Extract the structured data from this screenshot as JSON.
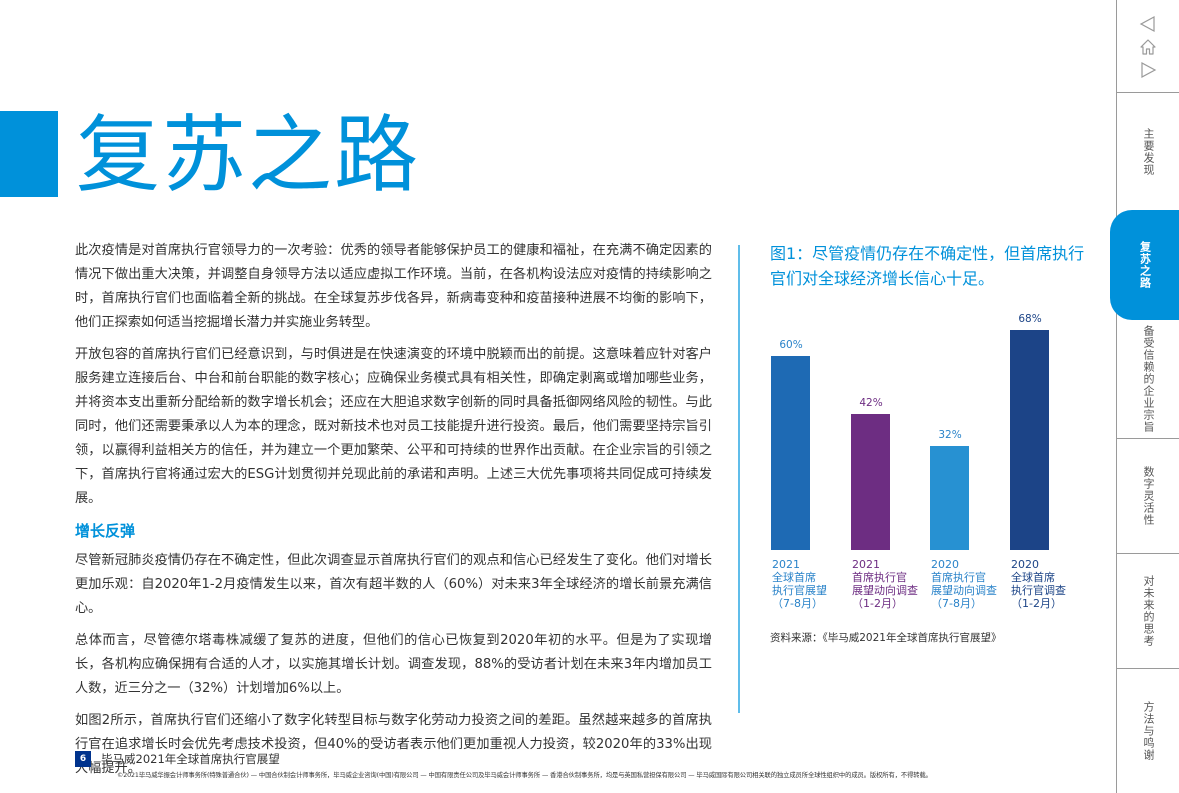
{
  "header": {
    "title": "复苏之路",
    "accent_color": "#0091da"
  },
  "body": {
    "paragraphs_intro": [
      "此次疫情是对首席执行官领导力的一次考验：优秀的领导者能够保护员工的健康和福祉，在充满不确定因素的情况下做出重大决策，并调整自身领导方法以适应虚拟工作环境。当前，在各机构设法应对疫情的持续影响之时，首席执行官们也面临着全新的挑战。在全球复苏步伐各异，新病毒变种和疫苗接种进展不均衡的影响下，他们正探索如何适当挖掘增长潜力并实施业务转型。",
      "开放包容的首席执行官们已经意识到，与时俱进是在快速演变的环境中脱颖而出的前提。这意味着应针对客户服务建立连接后台、中台和前台职能的数字核心；应确保业务模式具有相关性，即确定剥离或增加哪些业务，并将资本支出重新分配给新的数字增长机会；还应在大胆追求数字创新的同时具备抵御网络风险的韧性。与此同时，他们还需要秉承以人为本的理念，既对新技术也对员工技能提升进行投资。最后，他们需要坚持宗旨引领，以赢得利益相关方的信任，并为建立一个更加繁荣、公平和可持续的世界作出贡献。在企业宗旨的引领之下，首席执行官将通过宏大的ESG计划贯彻并兑现此前的承诺和声明。上述三大优先事项将共同促成可持续发展。"
    ],
    "subheading": "增长反弹",
    "paragraphs_growth": [
      "尽管新冠肺炎疫情仍存在不确定性，但此次调查显示首席执行官们的观点和信心已经发生了变化。他们对增长更加乐观：自2020年1-2月疫情发生以来，首次有超半数的人（60%）对未来3年全球经济的增长前景充满信心。",
      "总体而言，尽管德尔塔毒株减缓了复苏的进度，但他们的信心已恢复到2020年初的水平。但是为了实现增长，各机构应确保拥有合适的人才，以实施其增长计划。调查发现，88%的受访者计划在未来3年内增加员工人数，近三分之一（32%）计划增加6%以上。",
      "如图2所示，首席执行官们还缩小了数字化转型目标与数字化劳动力投资之间的差距。虽然越来越多的首席执行官在追求增长时会优先考虑技术投资，但40%的受访者表示他们更加重视人力投资，较2020年的33%出现大幅提升。"
    ]
  },
  "figure": {
    "title": "图1：尽管疫情仍存在不确定性，但首席执行官们对全球经济增长信心十足。",
    "source": "资料来源：《毕马威2021年全球首席执行官展望》"
  },
  "chart_data": {
    "type": "bar",
    "title": "图1：尽管疫情仍存在不确定性，但首席执行官们对全球经济增长信心十足。",
    "categories": [
      "2021 全球首席执行官展望（7-8月）",
      "2021 首席执行官展望动向调查（1-2月）",
      "2020 首席执行官展望动向调查（7-8月）",
      "2020 全球首席执行官调查（1-2月）"
    ],
    "category_lines": [
      [
        "2021",
        "全球首席",
        "执行官展望",
        "（7-8月）"
      ],
      [
        "2021",
        "首席执行官",
        "展望动向调查",
        "（1-2月）"
      ],
      [
        "2020",
        "首席执行官",
        "展望动向调查",
        "（7-8月）"
      ],
      [
        "2020",
        "全球首席",
        "执行官调查",
        "（1-2月）"
      ]
    ],
    "values": [
      60,
      42,
      32,
      68
    ],
    "value_labels": [
      "60%",
      "42%",
      "32%",
      "68%"
    ],
    "colors": [
      "#1e6ab4",
      "#6d2d82",
      "#2791d2",
      "#1c4487"
    ],
    "xlabel": "",
    "ylabel": "",
    "ylim": [
      0,
      100
    ],
    "grid": false,
    "legend": "none",
    "source": "资料来源：《毕马威2021年全球首席执行官展望》"
  },
  "footer": {
    "page_number": "6",
    "publication": "毕马威2021年全球首席执行官展望",
    "copyright": "©2021毕马威华振会计师事务所(特殊普通合伙) — 中国合伙制会计师事务所，毕马威企业咨询(中国)有限公司 — 中国有限责任公司及毕马威会计师事务所 — 香港合伙制事务所，均是与英国私营担保有限公司 — 毕马威国际有限公司相关联的独立成员所全球性组织中的成员。版权所有，不得转载。"
  },
  "sidebar": {
    "nav_icons": [
      "previous-page-icon",
      "home-icon",
      "next-page-icon"
    ],
    "tabs": [
      {
        "label": "主要发现",
        "active": false
      },
      {
        "label": "复苏之路",
        "active": true
      },
      {
        "label": "备受信赖的企业宗旨",
        "active": false
      },
      {
        "label": "数字灵活性",
        "active": false
      },
      {
        "label": "对未来的思考",
        "active": false
      },
      {
        "label": "方法与鸣谢",
        "active": false
      }
    ]
  }
}
